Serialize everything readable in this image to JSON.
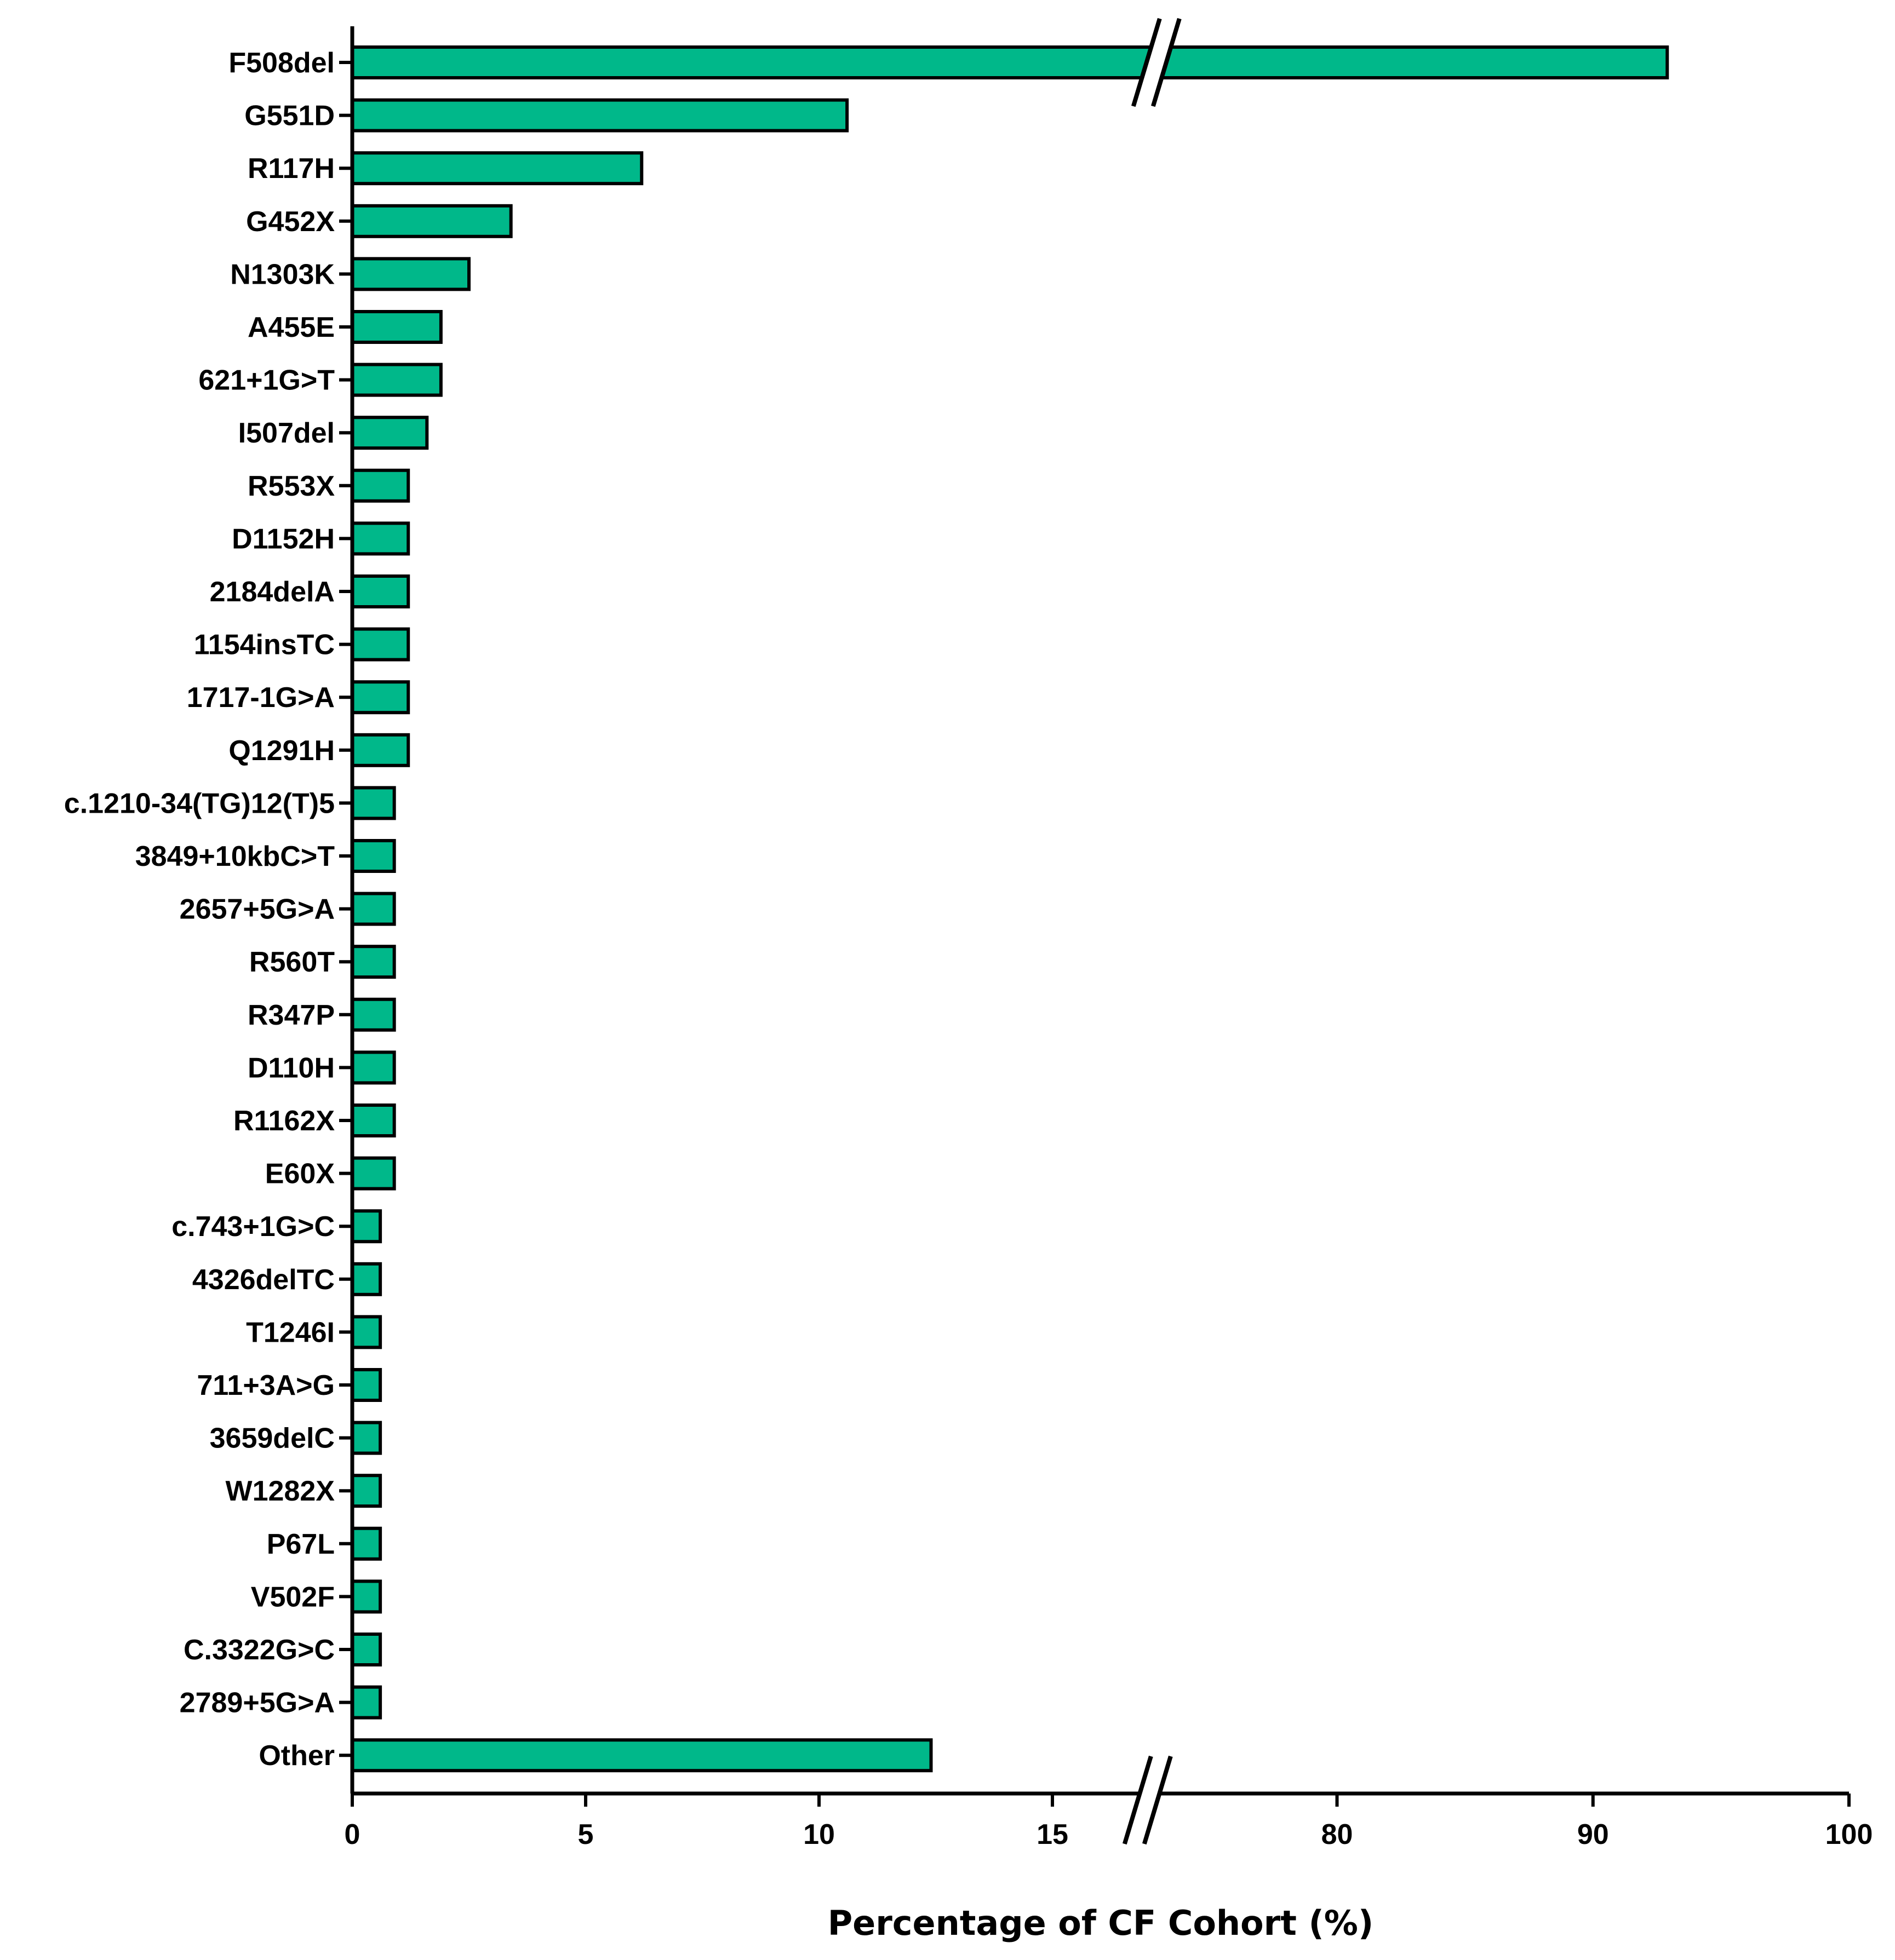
{
  "chart_data": {
    "type": "bar",
    "orientation": "horizontal",
    "categories": [
      "F508del",
      "G551D",
      "R117H",
      "G452X",
      "N1303K",
      "A455E",
      "621+1G>T",
      "I507del",
      "R553X",
      "D1152H",
      "2184delA",
      "1154insTC",
      "1717-1G>A",
      "Q1291H",
      "c.1210-34(TG)12(T)5",
      "3849+10kbC>T",
      "2657+5G>A",
      "R560T",
      "R347P",
      "D110H",
      "R1162X",
      "E60X",
      "c.743+1G>C",
      "4326delTC",
      "T1246I",
      "711+3A>G",
      "3659delC",
      "W1282X",
      "P67L",
      "V502F",
      "C.3322G>C",
      "2789+5G>A",
      "Other"
    ],
    "values": [
      92.9,
      10.6,
      6.2,
      3.4,
      2.5,
      1.9,
      1.9,
      1.6,
      1.2,
      1.2,
      1.2,
      1.2,
      1.2,
      1.2,
      0.9,
      0.9,
      0.9,
      0.9,
      0.9,
      0.9,
      0.9,
      0.9,
      0.6,
      0.6,
      0.6,
      0.6,
      0.6,
      0.6,
      0.6,
      0.6,
      0.6,
      0.6,
      12.4
    ],
    "xlabel": "Percentage of CF Cohort (%)",
    "ylabel": "",
    "title": "",
    "axis_break": {
      "lower_segment": [
        0,
        16.5
      ],
      "upper_segment": [
        73.5,
        100
      ]
    },
    "xticks": [
      0,
      5,
      10,
      15,
      80,
      90,
      100
    ],
    "tick_labels": [
      "0",
      "5",
      "10",
      "15",
      "80",
      "90",
      "100"
    ],
    "bar_color": "#00b88a",
    "edge_color": "#000000",
    "grid": false,
    "legend": "none"
  }
}
